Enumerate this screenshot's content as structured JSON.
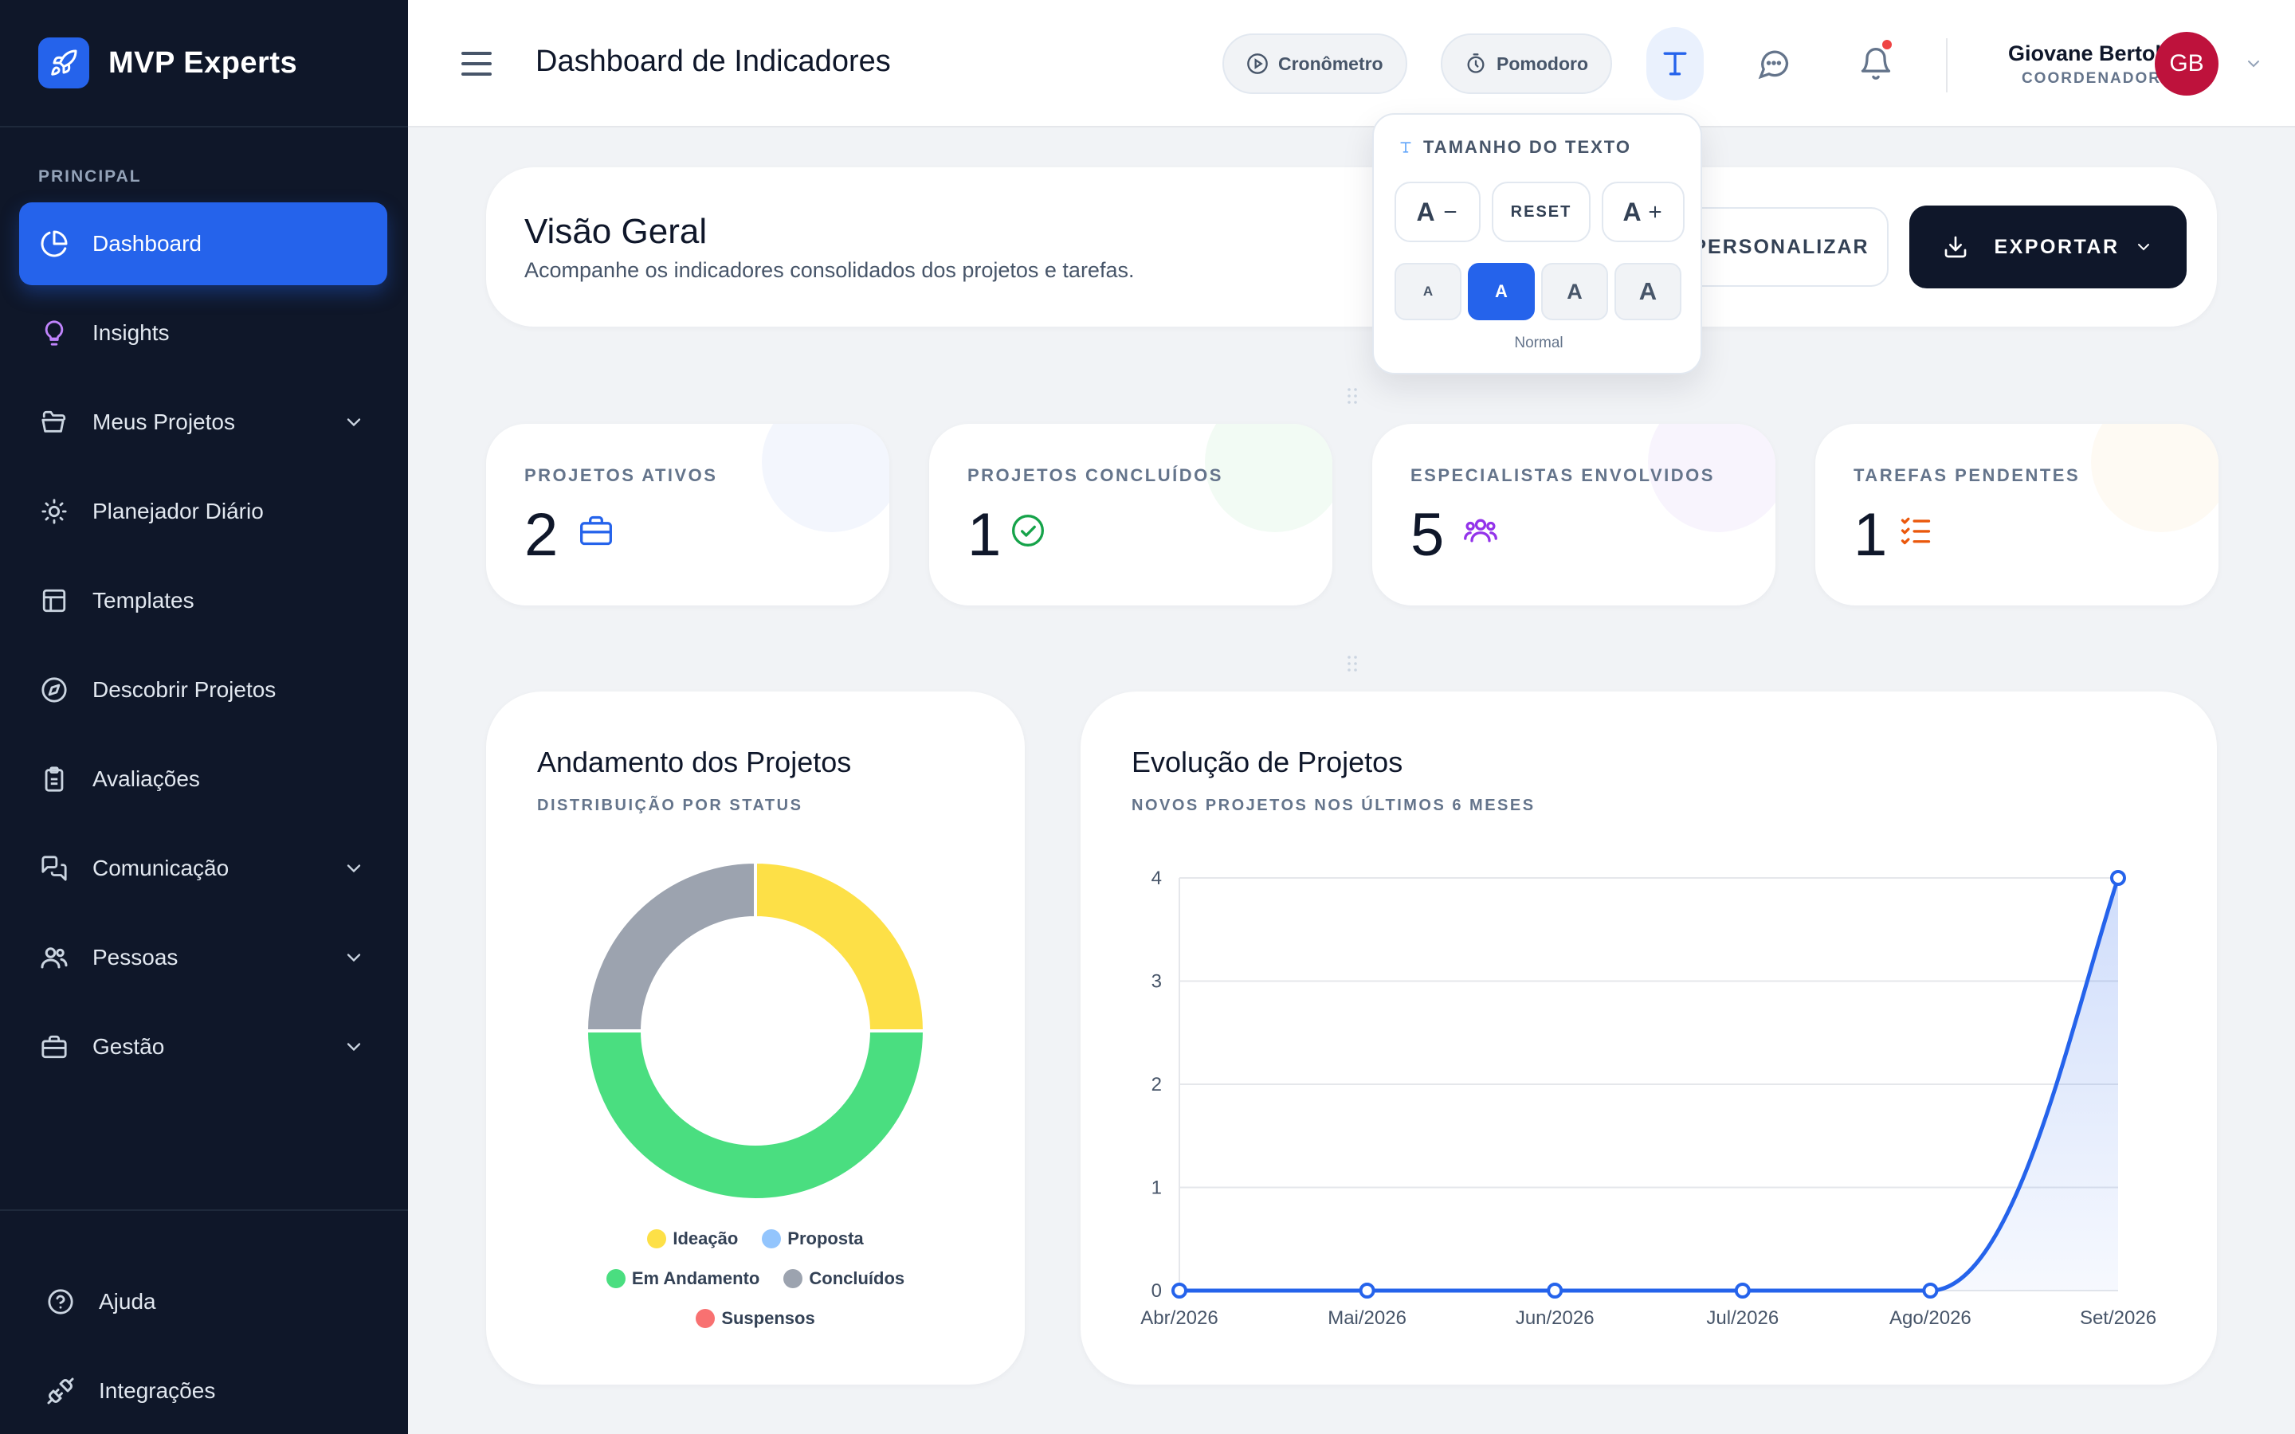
{
  "brand": {
    "name": "MVP Experts"
  },
  "sidebar": {
    "section_label": "PRINCIPAL",
    "items": [
      {
        "label": "Dashboard",
        "icon": "chart-pie-icon",
        "active": true
      },
      {
        "label": "Insights",
        "icon": "lightbulb-icon"
      },
      {
        "label": "Meus Projetos",
        "icon": "folder-icon",
        "expandable": true
      },
      {
        "label": "Planejador Diário",
        "icon": "sun-icon"
      },
      {
        "label": "Templates",
        "icon": "layout-icon"
      },
      {
        "label": "Descobrir Projetos",
        "icon": "compass-icon"
      },
      {
        "label": "Avaliações",
        "icon": "clipboard-icon"
      },
      {
        "label": "Comunicação",
        "icon": "chat-icon",
        "expandable": true
      },
      {
        "label": "Pessoas",
        "icon": "users-icon",
        "expandable": true
      },
      {
        "label": "Gestão",
        "icon": "briefcase-icon",
        "expandable": true
      }
    ],
    "bottom": [
      {
        "label": "Ajuda",
        "icon": "help-icon"
      },
      {
        "label": "Integrações",
        "icon": "plug-icon"
      }
    ]
  },
  "header": {
    "title": "Dashboard de Indicadores",
    "timer_label": "Cronômetro",
    "pomodoro_label": "Pomodoro",
    "user": {
      "name": "Giovane Bertol",
      "role": "COORDENADOR",
      "initials": "GB"
    }
  },
  "overview": {
    "title": "Visão Geral",
    "subtitle": "Acompanhe os indicadores consolidados dos projetos e tarefas.",
    "customize_label": "PERSONALIZAR",
    "export_label": "EXPORTAR"
  },
  "text_size": {
    "title": "TAMANHO DO TEXTO",
    "decrease_label": "A",
    "reset_label": "RESET",
    "increase_label": "A",
    "options": [
      "A",
      "A",
      "A",
      "A"
    ],
    "selected_index": 1,
    "selected_name": "Normal"
  },
  "stats": [
    {
      "label": "PROJETOS ATIVOS",
      "value": "2",
      "icon": "briefcase-icon",
      "color": "#2563eb"
    },
    {
      "label": "PROJETOS CONCLUÍDOS",
      "value": "1",
      "icon": "check-circle-icon",
      "color": "#16a34a"
    },
    {
      "label": "ESPECIALISTAS ENVOLVIDOS",
      "value": "5",
      "icon": "users-icon",
      "color": "#9333ea"
    },
    {
      "label": "TAREFAS PENDENTES",
      "value": "1",
      "icon": "checklist-icon",
      "color": "#ea580c"
    }
  ],
  "donut": {
    "title": "Andamento dos Projetos",
    "subtitle": "DISTRIBUIÇÃO POR STATUS"
  },
  "line": {
    "title": "Evolução de Projetos",
    "subtitle": "NOVOS PROJETOS NOS ÚLTIMOS 6 MESES"
  },
  "chart_data": [
    {
      "type": "pie",
      "title": "Andamento dos Projetos",
      "categories": [
        "Ideação",
        "Proposta",
        "Em Andamento",
        "Concluídos",
        "Suspensos"
      ],
      "values": [
        1,
        0,
        2,
        1,
        0
      ],
      "colors": [
        "#fde047",
        "#93c5fd",
        "#4ade80",
        "#9ca3af",
        "#f87171"
      ],
      "legend": "bottom"
    },
    {
      "type": "area",
      "title": "Evolução de Projetos",
      "categories": [
        "Abr/2026",
        "Mai/2026",
        "Jun/2026",
        "Jul/2026",
        "Ago/2026",
        "Set/2026"
      ],
      "series": [
        {
          "values": [
            0,
            0,
            0,
            0,
            0,
            4
          ]
        }
      ],
      "ylim": [
        0,
        4
      ],
      "yticks": [
        0,
        1,
        2,
        3,
        4
      ],
      "grid": true,
      "color": "#2563eb"
    }
  ]
}
